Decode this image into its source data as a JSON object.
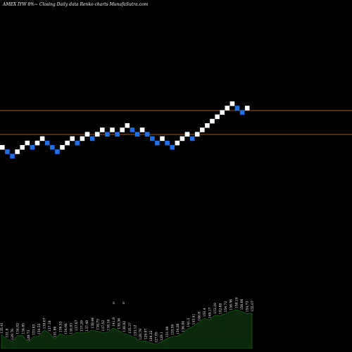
{
  "header": {
    "title": "AMEX  IYW  8%~  Closing Daily data  Renko  charts MunafaSutra.com"
  },
  "colors": {
    "background": "#000000",
    "up_brick": "#ffffff",
    "down_brick": "#1e6fe6",
    "reference_line": "#c8702a",
    "volume_fill": "#0b2a0b",
    "volume_stroke": "#1f6f1f",
    "label_text": "#ffffff"
  },
  "chart_data": {
    "type": "renko",
    "brick_direction": [
      "up",
      "down",
      "down",
      "up",
      "up",
      "up",
      "down",
      "up",
      "up",
      "down",
      "down",
      "down",
      "up",
      "up",
      "up",
      "down",
      "up",
      "up",
      "down",
      "up",
      "up",
      "down",
      "up",
      "down",
      "up",
      "up",
      "down",
      "down",
      "up",
      "down",
      "down",
      "down",
      "up",
      "down",
      "down",
      "up",
      "up",
      "up",
      "down",
      "up",
      "up",
      "up",
      "up",
      "up",
      "up",
      "up",
      "up",
      "down",
      "down",
      "up"
    ],
    "reference_lines": [
      "upper",
      "lower"
    ],
    "volume_labels": [
      "135.41",
      "131.8",
      "129.78",
      "134.82",
      "134.85",
      "128.73",
      "133.83",
      "134.53",
      "139.67",
      "137.18",
      "131.86",
      "136.53",
      "134.66",
      "134.93",
      "137.67",
      "137.29",
      "137.48",
      "139.94",
      "138.75",
      "137.52",
      "138.16",
      "141.8",
      "139.36",
      "136.82",
      "135.37",
      "133.12",
      "129.79",
      "129.97",
      "128.22",
      "127.05",
      "129.1",
      "131.99",
      "133.95",
      "134.56",
      "136.84",
      "141.3",
      "143.41",
      "146.8",
      "150.4",
      "149.17",
      "153.19",
      "152.88",
      "154.72",
      "156.56",
      "158.19",
      "156.66",
      "154.73",
      "155.07"
    ]
  }
}
